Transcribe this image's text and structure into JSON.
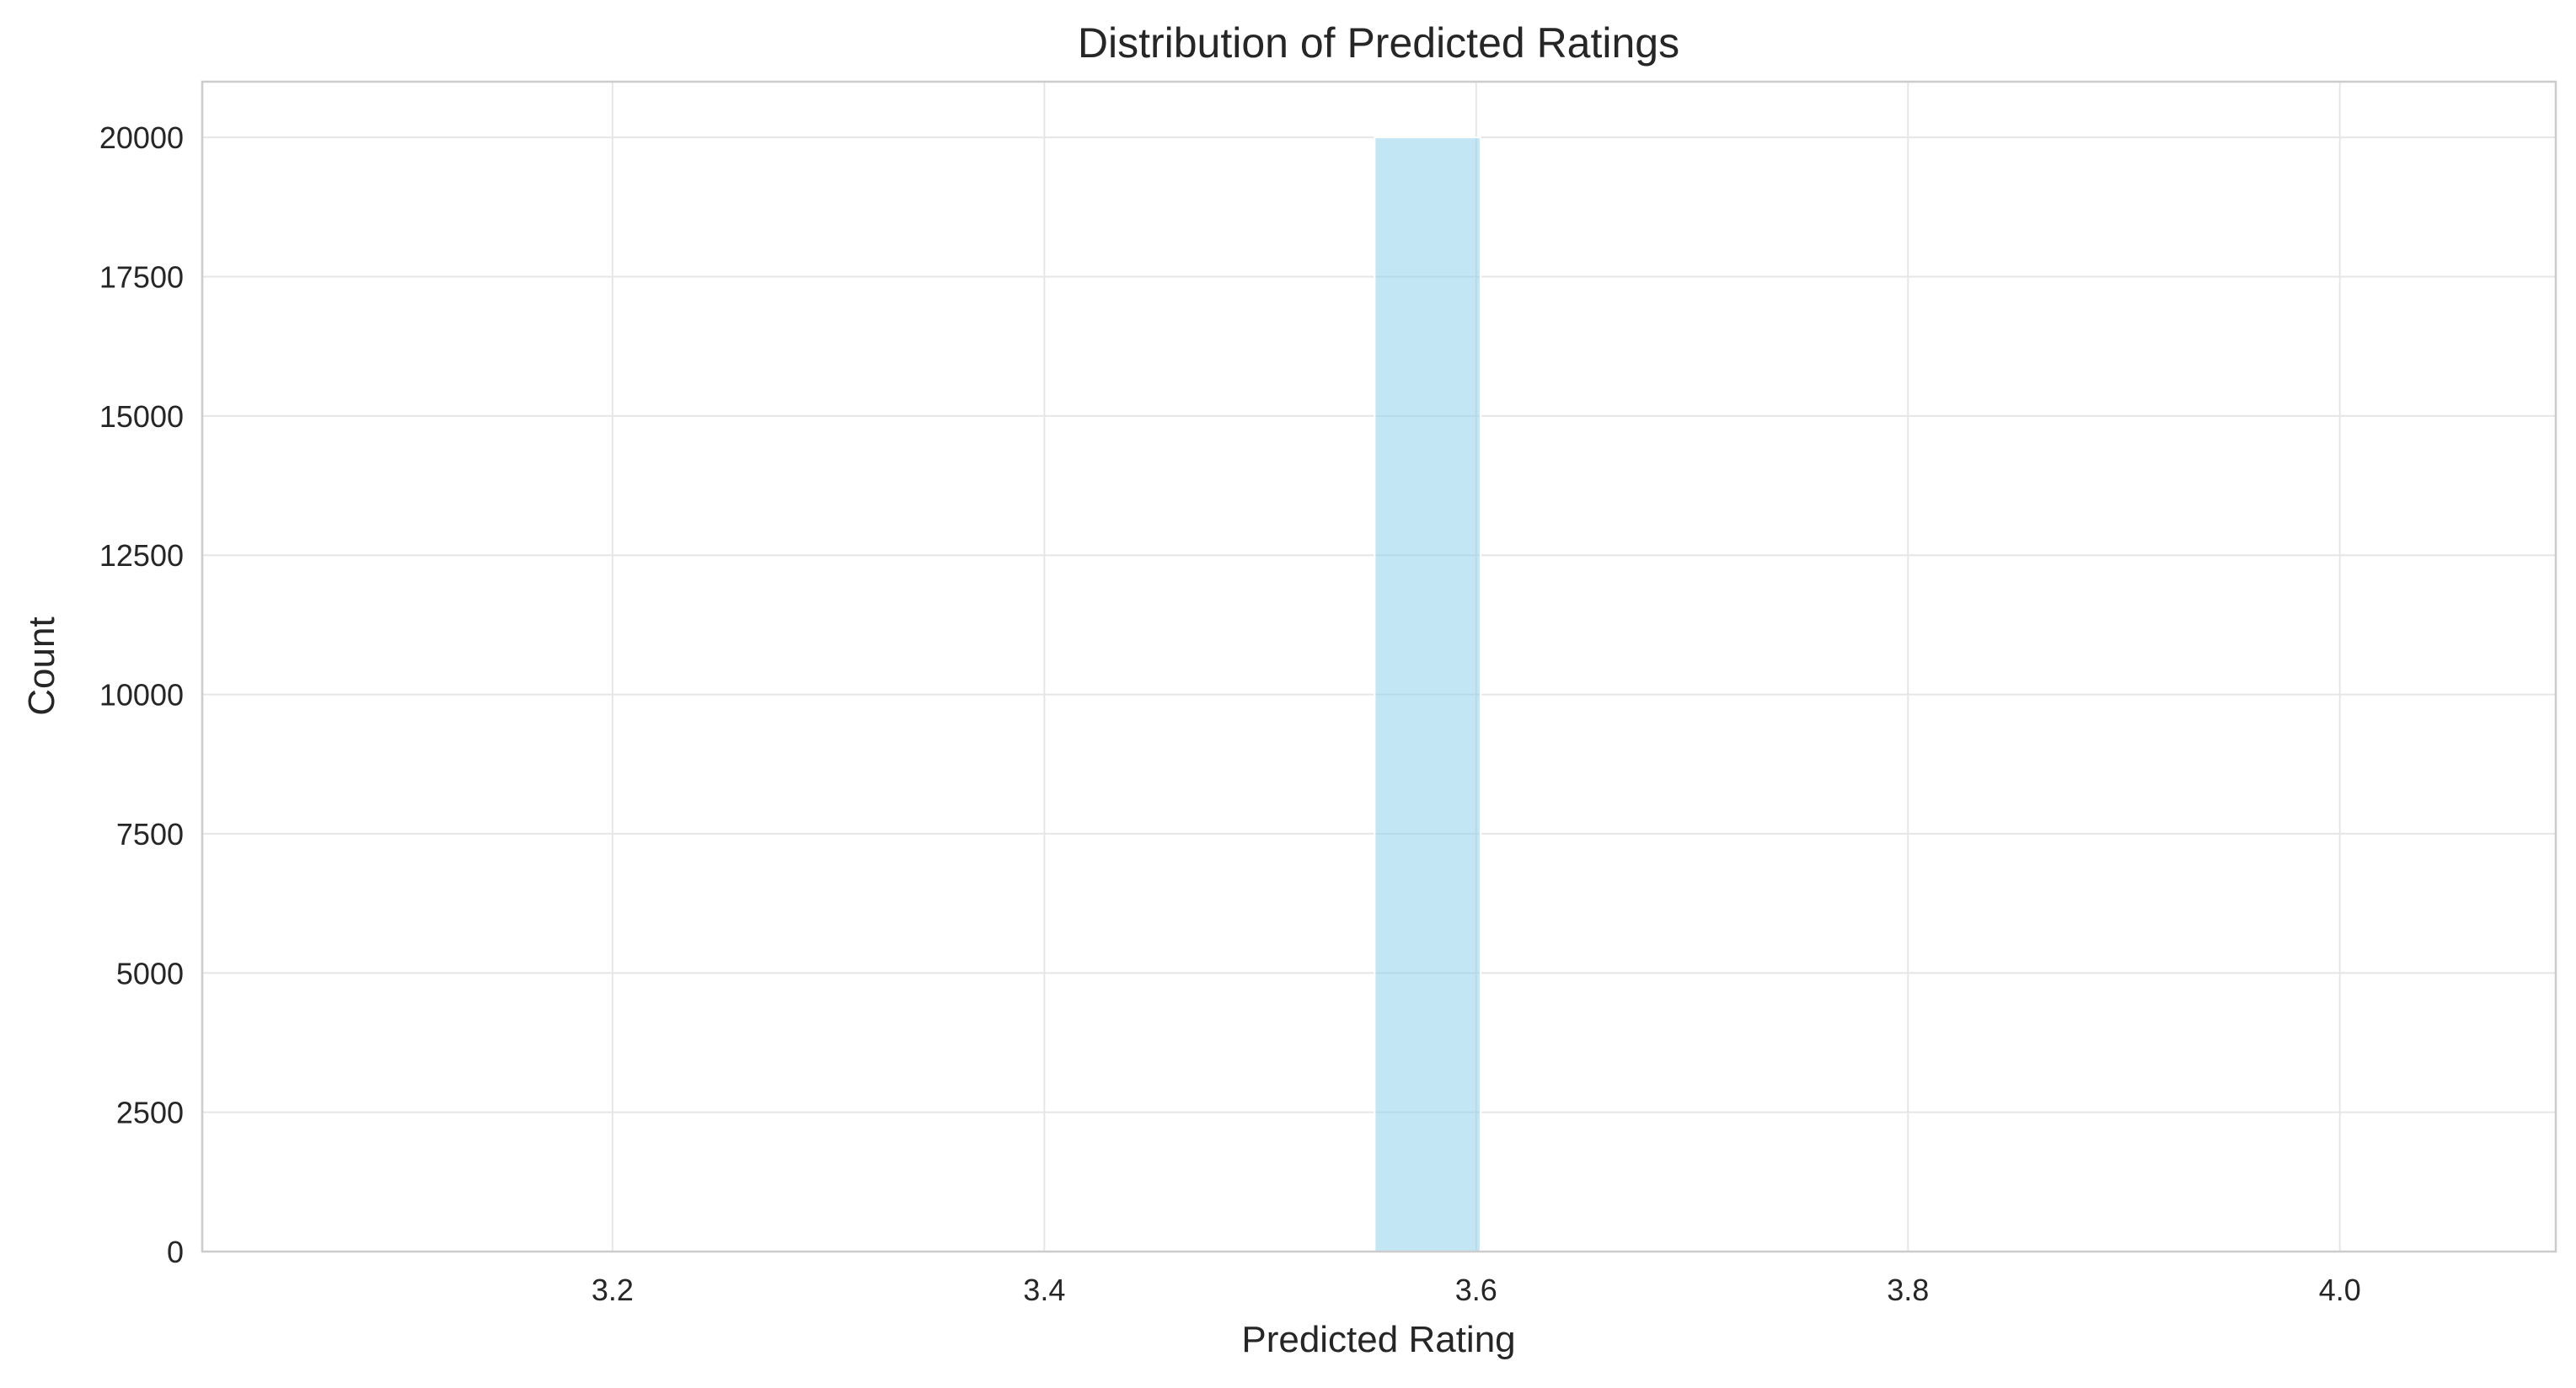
{
  "chart_data": {
    "type": "bar",
    "title": "Distribution of Predicted Ratings",
    "xlabel": "Predicted Rating",
    "ylabel": "Count",
    "xlim": [
      3.01,
      4.1
    ],
    "ylim": [
      0,
      21000
    ],
    "x_ticks": [
      "3.2",
      "3.4",
      "3.6",
      "3.8",
      "4.0"
    ],
    "y_ticks": [
      "0",
      "2500",
      "5000",
      "7500",
      "10000",
      "12500",
      "15000",
      "17500",
      "20000"
    ],
    "grid": true,
    "bars": [
      {
        "x_start": 3.553,
        "x_end": 3.602,
        "value": 20000
      }
    ],
    "colors": {
      "bar": "#87ceeb",
      "grid": "#e6e6e6",
      "spine": "#cccccc"
    }
  }
}
